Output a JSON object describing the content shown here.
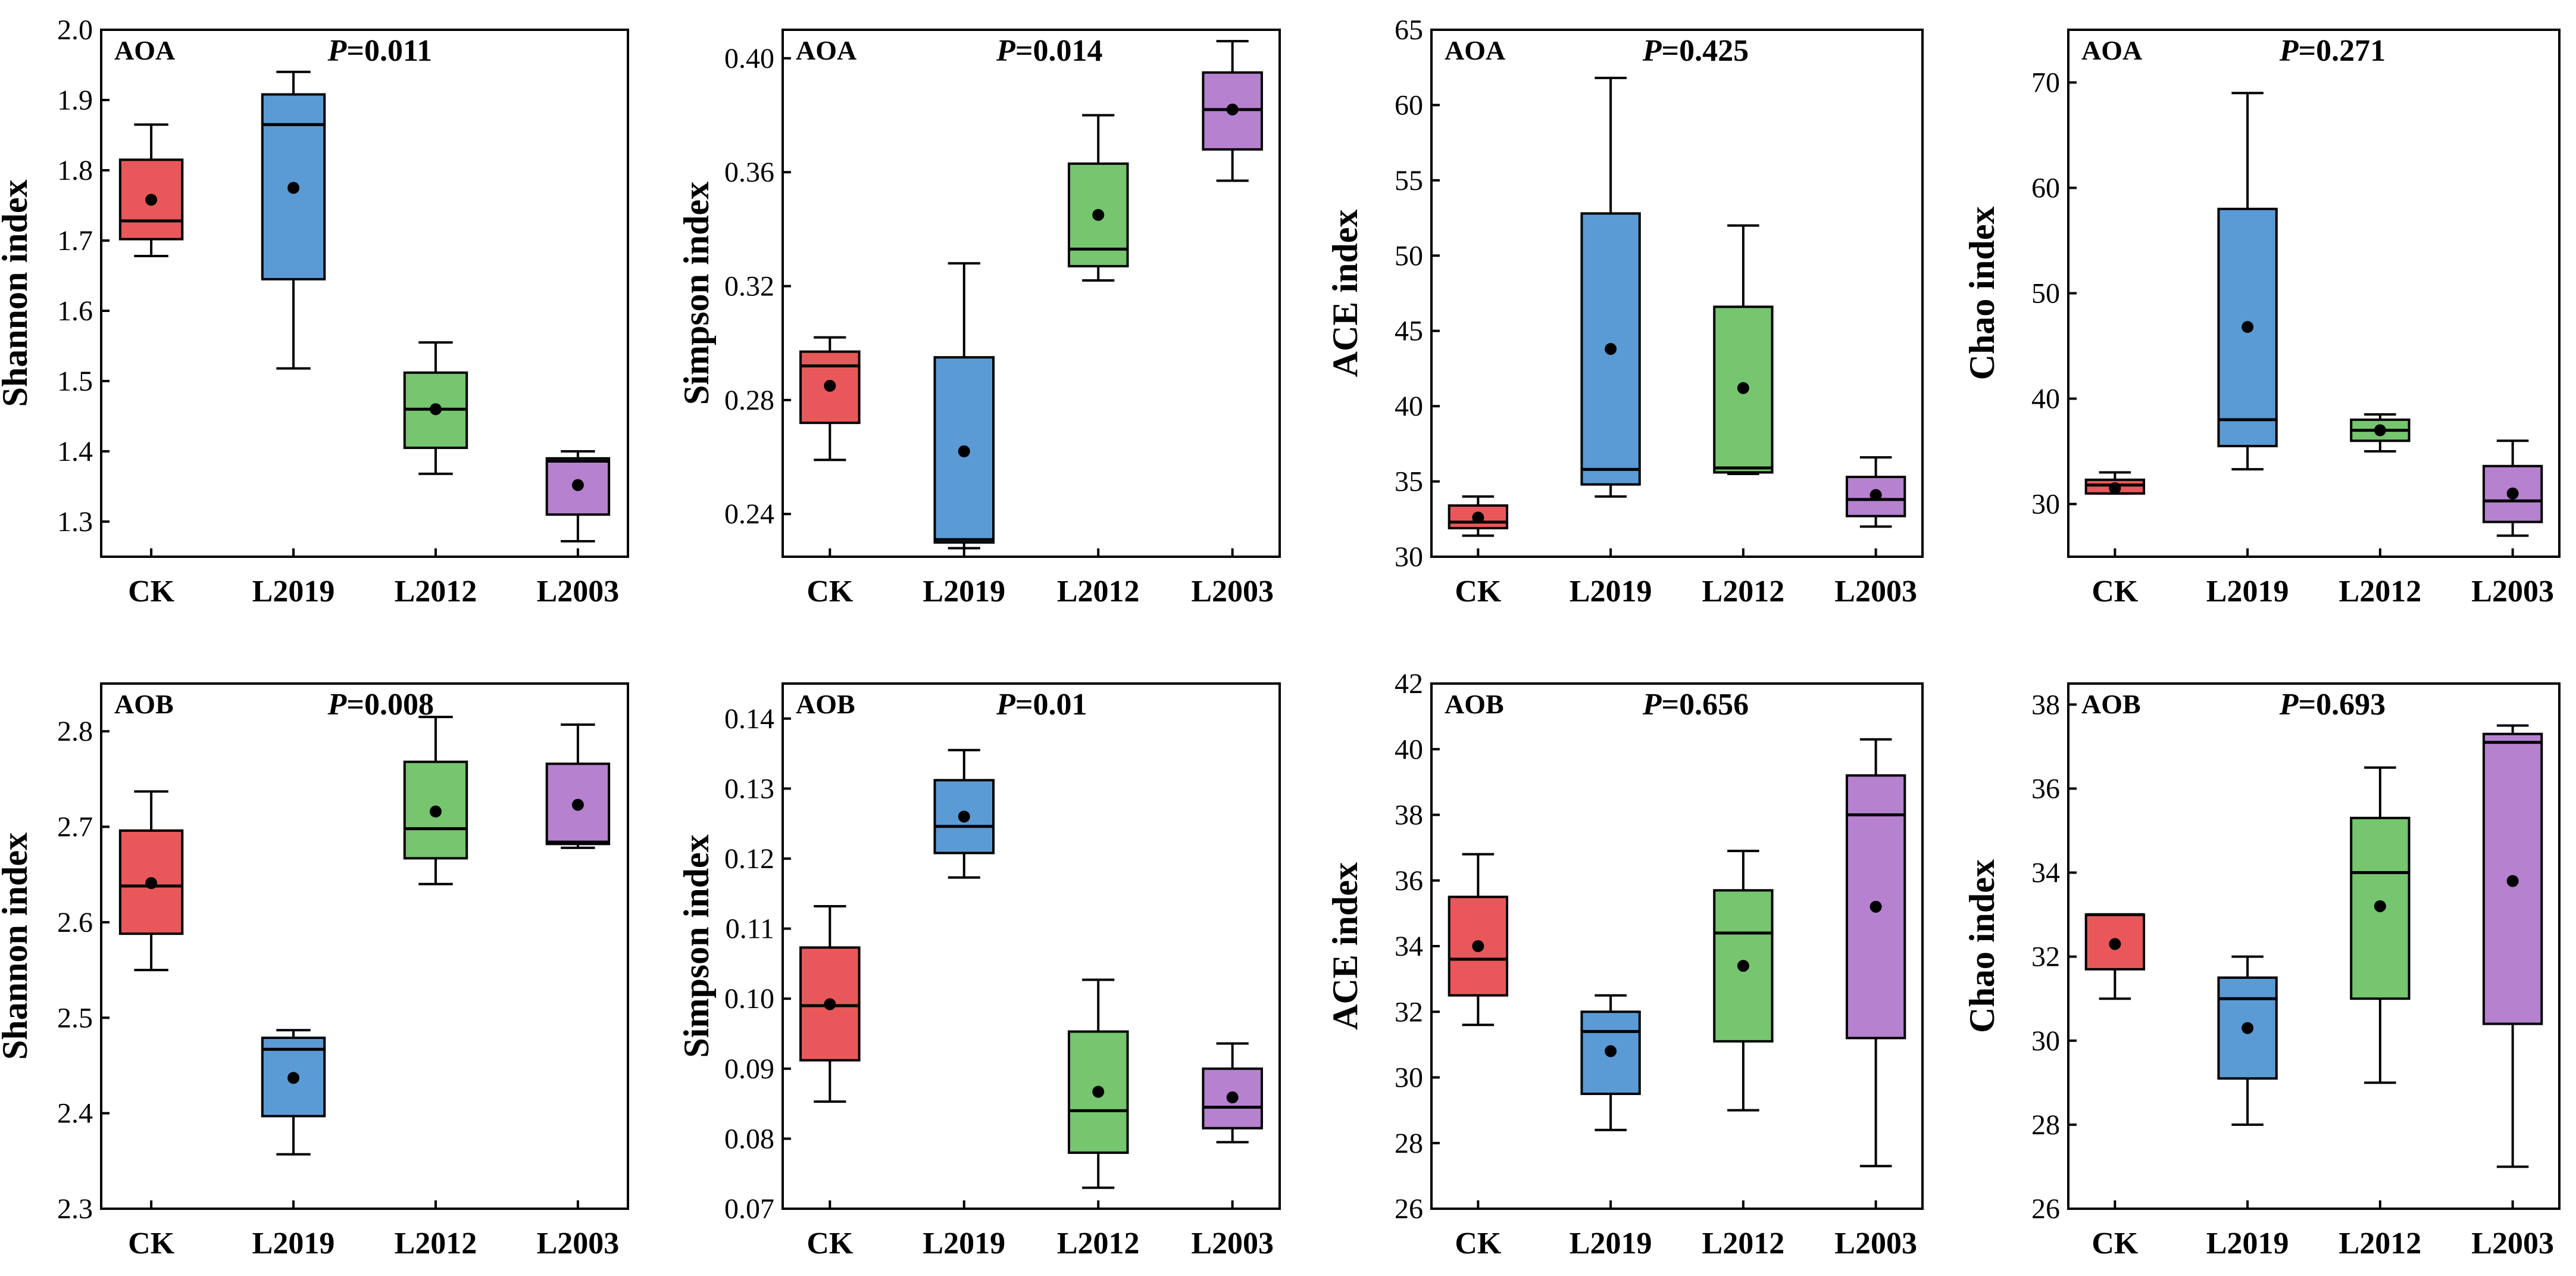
{
  "colors": {
    "CK": "#e8585a",
    "L2019": "#5b9bd5",
    "L2012": "#76c56f",
    "L2003": "#b681cf"
  },
  "chart_data": [
    {
      "type": "box",
      "group": "AOA",
      "p_label": "=0.011",
      "ylabel": "Shannon index",
      "ylim": [
        1.25,
        2.0
      ],
      "ticks": [
        "1.3",
        "1.4",
        "1.5",
        "1.6",
        "1.7",
        "1.8",
        "1.9",
        "2.0"
      ],
      "categories": [
        "CK",
        "L2019",
        "L2012",
        "L2003"
      ],
      "boxes": [
        {
          "min": 1.678,
          "q1": 1.702,
          "median": 1.728,
          "q3": 1.815,
          "max": 1.865,
          "mean": 1.758
        },
        {
          "min": 1.518,
          "q1": 1.645,
          "median": 1.865,
          "q3": 1.908,
          "max": 1.94,
          "mean": 1.775
        },
        {
          "min": 1.368,
          "q1": 1.405,
          "median": 1.46,
          "q3": 1.512,
          "max": 1.555,
          "mean": 1.46
        },
        {
          "min": 1.272,
          "q1": 1.31,
          "median": 1.386,
          "q3": 1.39,
          "max": 1.4,
          "mean": 1.352
        }
      ]
    },
    {
      "type": "box",
      "group": "AOA",
      "p_label": "=0.014",
      "ylabel": "Simpson index",
      "ylim": [
        0.225,
        0.41
      ],
      "ticks": [
        "0.24",
        "0.28",
        "0.32",
        "0.36",
        "0.40"
      ],
      "categories": [
        "CK",
        "L2019",
        "L2012",
        "L2003"
      ],
      "boxes": [
        {
          "min": 0.259,
          "q1": 0.272,
          "median": 0.292,
          "q3": 0.297,
          "max": 0.302,
          "mean": 0.285
        },
        {
          "min": 0.228,
          "q1": 0.23,
          "median": 0.231,
          "q3": 0.295,
          "max": 0.328,
          "mean": 0.262
        },
        {
          "min": 0.322,
          "q1": 0.327,
          "median": 0.333,
          "q3": 0.363,
          "max": 0.38,
          "mean": 0.345
        },
        {
          "min": 0.357,
          "q1": 0.368,
          "median": 0.382,
          "q3": 0.395,
          "max": 0.406,
          "mean": 0.382
        }
      ]
    },
    {
      "type": "box",
      "group": "AOA",
      "p_label": "=0.425",
      "ylabel": "ACE index",
      "ylim": [
        30,
        65
      ],
      "ticks": [
        "30",
        "35",
        "40",
        "45",
        "50",
        "55",
        "60",
        "65"
      ],
      "categories": [
        "CK",
        "L2019",
        "L2012",
        "L2003"
      ],
      "boxes": [
        {
          "min": 31.4,
          "q1": 31.9,
          "median": 32.3,
          "q3": 33.4,
          "max": 34.0,
          "mean": 32.6
        },
        {
          "min": 34.0,
          "q1": 34.8,
          "median": 35.8,
          "q3": 52.8,
          "max": 61.8,
          "mean": 43.8
        },
        {
          "min": 35.5,
          "q1": 35.6,
          "median": 35.9,
          "q3": 46.6,
          "max": 52.0,
          "mean": 41.2
        },
        {
          "min": 32.0,
          "q1": 32.7,
          "median": 33.8,
          "q3": 35.3,
          "max": 36.6,
          "mean": 34.1
        }
      ]
    },
    {
      "type": "box",
      "group": "AOA",
      "p_label": "=0.271",
      "ylabel": "Chao index",
      "ylim": [
        25,
        75
      ],
      "ticks": [
        "30",
        "40",
        "50",
        "60",
        "70"
      ],
      "categories": [
        "CK",
        "L2019",
        "L2012",
        "L2003"
      ],
      "boxes": [
        {
          "min": 31.0,
          "q1": 31.0,
          "median": 31.8,
          "q3": 32.3,
          "max": 33.0,
          "mean": 31.5
        },
        {
          "min": 33.3,
          "q1": 35.5,
          "median": 38.0,
          "q3": 58.0,
          "max": 69.0,
          "mean": 46.8
        },
        {
          "min": 35.0,
          "q1": 36.0,
          "median": 37.0,
          "q3": 38.0,
          "max": 38.5,
          "mean": 37.0
        },
        {
          "min": 27.0,
          "q1": 28.3,
          "median": 30.3,
          "q3": 33.6,
          "max": 36.0,
          "mean": 31.0
        }
      ]
    },
    {
      "type": "box",
      "group": "AOB",
      "p_label": "=0.008",
      "ylabel": "Shannon index",
      "ylim": [
        2.3,
        2.85
      ],
      "ticks": [
        "2.3",
        "2.4",
        "2.5",
        "2.6",
        "2.7",
        "2.8"
      ],
      "categories": [
        "CK",
        "L2019",
        "L2012",
        "L2003"
      ],
      "boxes": [
        {
          "min": 2.55,
          "q1": 2.588,
          "median": 2.638,
          "q3": 2.696,
          "max": 2.737,
          "mean": 2.641
        },
        {
          "min": 2.357,
          "q1": 2.397,
          "median": 2.467,
          "q3": 2.479,
          "max": 2.487,
          "mean": 2.437
        },
        {
          "min": 2.64,
          "q1": 2.667,
          "median": 2.698,
          "q3": 2.768,
          "max": 2.815,
          "mean": 2.716
        },
        {
          "min": 2.678,
          "q1": 2.682,
          "median": 2.684,
          "q3": 2.766,
          "max": 2.807,
          "mean": 2.723
        }
      ]
    },
    {
      "type": "box",
      "group": "AOB",
      "p_label": "=0.01",
      "ylabel": "Simpson index",
      "ylim": [
        0.07,
        0.145
      ],
      "ticks": [
        "0.07",
        "0.08",
        "0.09",
        "0.10",
        "0.11",
        "0.12",
        "0.13",
        "0.14"
      ],
      "categories": [
        "CK",
        "L2019",
        "L2012",
        "L2003"
      ],
      "boxes": [
        {
          "min": 0.0853,
          "q1": 0.0912,
          "median": 0.099,
          "q3": 0.1073,
          "max": 0.1132,
          "mean": 0.0992
        },
        {
          "min": 0.1173,
          "q1": 0.1208,
          "median": 0.1246,
          "q3": 0.1312,
          "max": 0.1355,
          "mean": 0.126
        },
        {
          "min": 0.073,
          "q1": 0.078,
          "median": 0.084,
          "q3": 0.0953,
          "max": 0.1027,
          "mean": 0.0867
        },
        {
          "min": 0.0795,
          "q1": 0.0815,
          "median": 0.0845,
          "q3": 0.09,
          "max": 0.0936,
          "mean": 0.0859
        }
      ]
    },
    {
      "type": "box",
      "group": "AOB",
      "p_label": "=0.656",
      "ylabel": "ACE index",
      "ylim": [
        26,
        42
      ],
      "ticks": [
        "26",
        "28",
        "30",
        "32",
        "34",
        "36",
        "38",
        "40",
        "42"
      ],
      "categories": [
        "CK",
        "L2019",
        "L2012",
        "L2003"
      ],
      "boxes": [
        {
          "min": 31.6,
          "q1": 32.5,
          "median": 33.6,
          "q3": 35.5,
          "max": 36.8,
          "mean": 34.0
        },
        {
          "min": 28.4,
          "q1": 29.5,
          "median": 31.4,
          "q3": 32.0,
          "max": 32.5,
          "mean": 30.8
        },
        {
          "min": 29.0,
          "q1": 31.1,
          "median": 34.4,
          "q3": 35.7,
          "max": 36.9,
          "mean": 33.4
        },
        {
          "min": 27.3,
          "q1": 31.2,
          "median": 38.0,
          "q3": 39.2,
          "max": 40.3,
          "mean": 35.2
        }
      ]
    },
    {
      "type": "box",
      "group": "AOB",
      "p_label": "=0.693",
      "ylabel": "Chao index",
      "ylim": [
        26,
        38.5
      ],
      "ticks": [
        "26",
        "28",
        "30",
        "32",
        "34",
        "36",
        "38"
      ],
      "categories": [
        "CK",
        "L2019",
        "L2012",
        "L2003"
      ],
      "boxes": [
        {
          "min": 31.0,
          "q1": 31.7,
          "median": 33.0,
          "q3": 33.0,
          "max": 33.0,
          "mean": 32.3
        },
        {
          "min": 28.0,
          "q1": 29.1,
          "median": 31.0,
          "q3": 31.5,
          "max": 32.0,
          "mean": 30.3
        },
        {
          "min": 29.0,
          "q1": 31.0,
          "median": 34.0,
          "q3": 35.3,
          "max": 36.5,
          "mean": 33.2
        },
        {
          "min": 27.0,
          "q1": 30.4,
          "median": 37.1,
          "q3": 37.3,
          "max": 37.5,
          "mean": 33.8
        }
      ]
    }
  ]
}
